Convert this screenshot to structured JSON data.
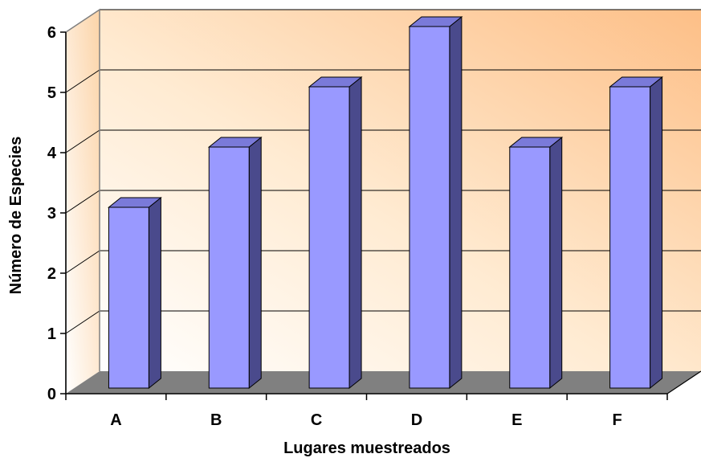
{
  "chart_data": {
    "type": "bar",
    "title": "",
    "xlabel": "Lugares muestreados",
    "ylabel": "Número de Especies",
    "categories": [
      "A",
      "B",
      "C",
      "D",
      "E",
      "F"
    ],
    "values": [
      3,
      4,
      5,
      6,
      4,
      5
    ],
    "ylim": [
      0,
      6
    ],
    "yticks": [
      0,
      1,
      2,
      3,
      4,
      5,
      6
    ],
    "grid": true,
    "legend": "none",
    "style": "3d",
    "colors": {
      "bar_front": "#9999FF",
      "bar_side": "#4A4A8C",
      "bar_top": "#7A7AD9",
      "floor": "#808080",
      "wall_light": "#FFF6EA",
      "wall_dark": "#FDC08A"
    }
  }
}
